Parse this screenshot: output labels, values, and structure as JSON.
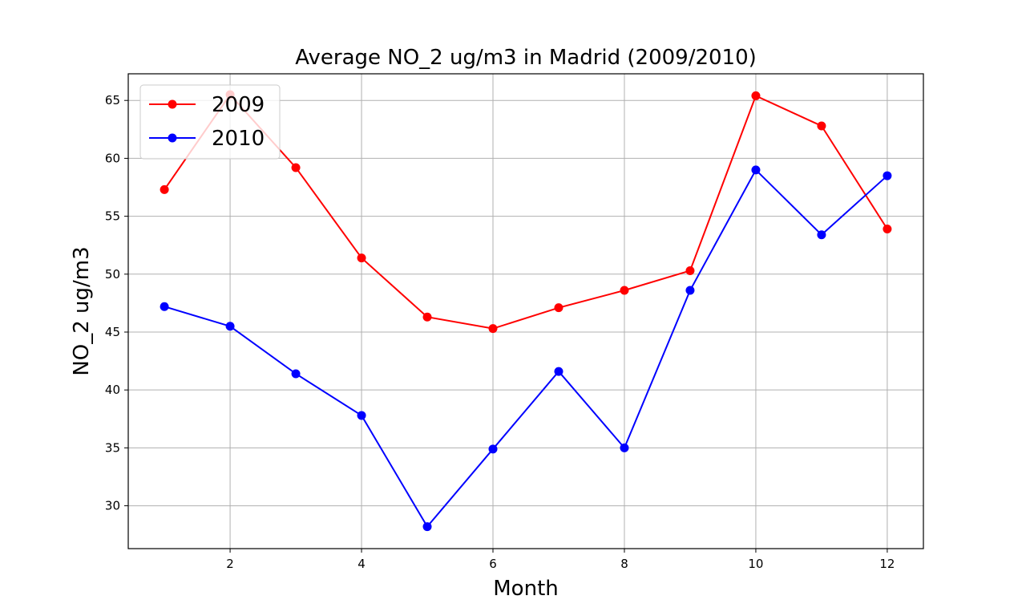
{
  "chart_data": {
    "type": "line",
    "title": "Average NO_2 ug/m3 in Madrid (2009/2010)",
    "xlabel": "Month",
    "ylabel": "NO_2 ug/m3",
    "x": [
      1,
      2,
      3,
      4,
      5,
      6,
      7,
      8,
      9,
      10,
      11,
      12
    ],
    "xlim": [
      0.45,
      12.55
    ],
    "ylim": [
      26.3,
      67.3
    ],
    "xticks": [
      2,
      4,
      6,
      8,
      10,
      12
    ],
    "yticks": [
      30,
      35,
      40,
      45,
      50,
      55,
      60,
      65
    ],
    "grid": true,
    "legend_position": "top-left",
    "series": [
      {
        "name": "2009",
        "color": "#ff0000",
        "values": [
          57.3,
          65.5,
          59.2,
          51.4,
          46.3,
          45.3,
          47.1,
          48.6,
          50.3,
          65.4,
          62.8,
          53.9
        ]
      },
      {
        "name": "2010",
        "color": "#0000ff",
        "values": [
          47.2,
          45.5,
          41.4,
          37.8,
          28.2,
          34.9,
          41.6,
          35.0,
          48.6,
          59.0,
          53.4,
          58.5
        ]
      }
    ]
  }
}
